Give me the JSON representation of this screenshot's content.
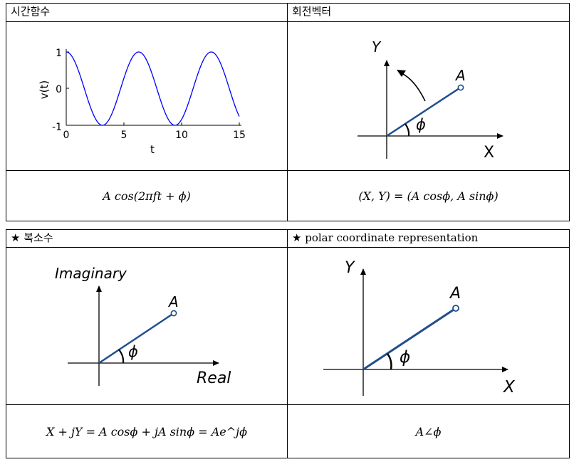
{
  "table1": {
    "header_left": "시간함수",
    "header_right": "회전벡터",
    "formula_left": "A cos(2πft + ϕ)",
    "formula_right": "(X, Y) = (A cosϕ, A sinϕ)"
  },
  "table2": {
    "header_left": "★ 복소수",
    "header_right": "★ polar coordinate representation",
    "formula_left": "X + jY = A cosϕ + jA sinϕ = Ae^jϕ",
    "formula_right": "A∠ϕ"
  },
  "chart_data": {
    "type": "line",
    "title": "",
    "xlabel": "t",
    "ylabel": "v(t)",
    "xlim": [
      0,
      15
    ],
    "ylim": [
      -1,
      1
    ],
    "xticks": [
      "0",
      "5",
      "10",
      "15"
    ],
    "yticks": [
      "1",
      "0",
      "-1"
    ],
    "series": [
      {
        "function": "cos(t)",
        "x_range": [
          0,
          15
        ],
        "color": "#0000ff"
      }
    ]
  },
  "rotating_vector": {
    "y_label": "Y",
    "x_label": "X",
    "point_label": "A",
    "angle_label": "ϕ"
  },
  "complex_plane": {
    "y_label": "Imaginary",
    "x_label": "Real",
    "point_label": "A",
    "angle_label": "ϕ"
  },
  "polar_plane": {
    "y_label": "Y",
    "x_label": "X",
    "point_label": "A",
    "angle_label": "ϕ"
  },
  "colors": {
    "vector": "#1f4e8c",
    "curve": "#0000ff",
    "axis": "#000000"
  }
}
